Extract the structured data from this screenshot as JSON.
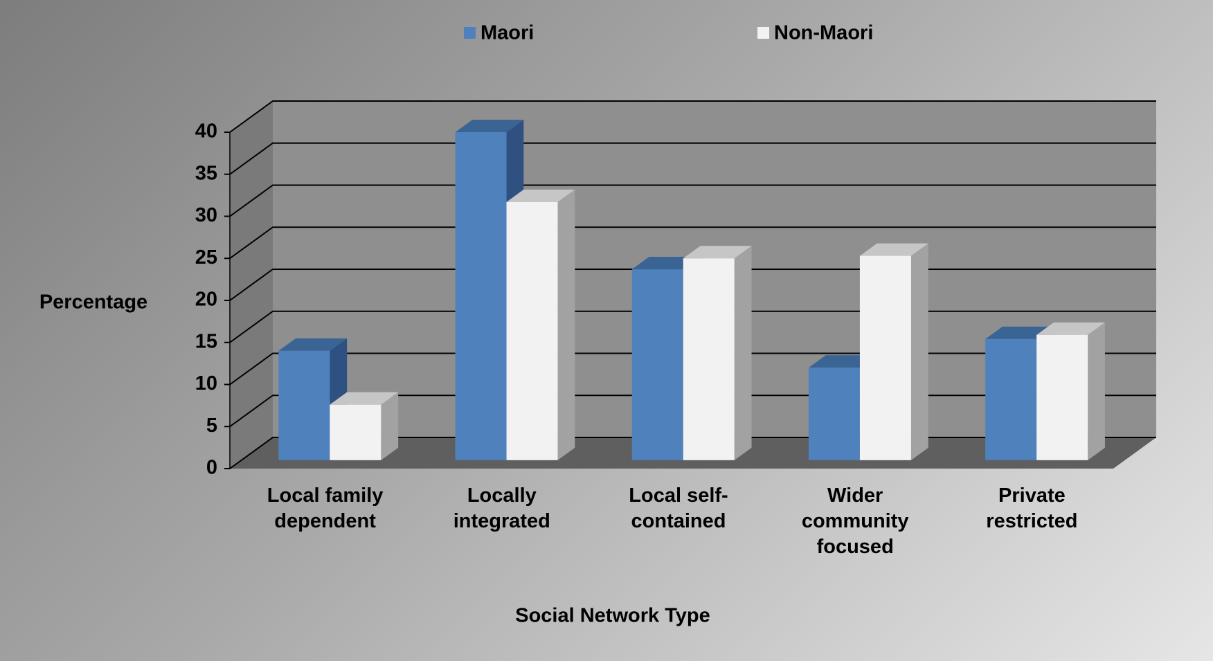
{
  "chart_data": {
    "type": "bar3d",
    "x_label": "Social Network Type",
    "y_label": "Percentage",
    "categories": [
      "Local family dependent",
      "Locally integrated",
      "Local self-contained",
      "Wider community focused",
      "Private restricted"
    ],
    "series": [
      {
        "name": "Maori",
        "color": "#4f81bd",
        "values": [
          13,
          39,
          22.7,
          11,
          14.4
        ]
      },
      {
        "name": "Non-Maori",
        "color": "#f2f2f2",
        "values": [
          6.6,
          30.7,
          24,
          24.3,
          14.9
        ]
      }
    ],
    "ylim": [
      0,
      40
    ],
    "yticks": [
      0,
      5,
      10,
      15,
      20,
      25,
      30,
      35,
      40
    ],
    "grid": true,
    "legend": "top"
  }
}
